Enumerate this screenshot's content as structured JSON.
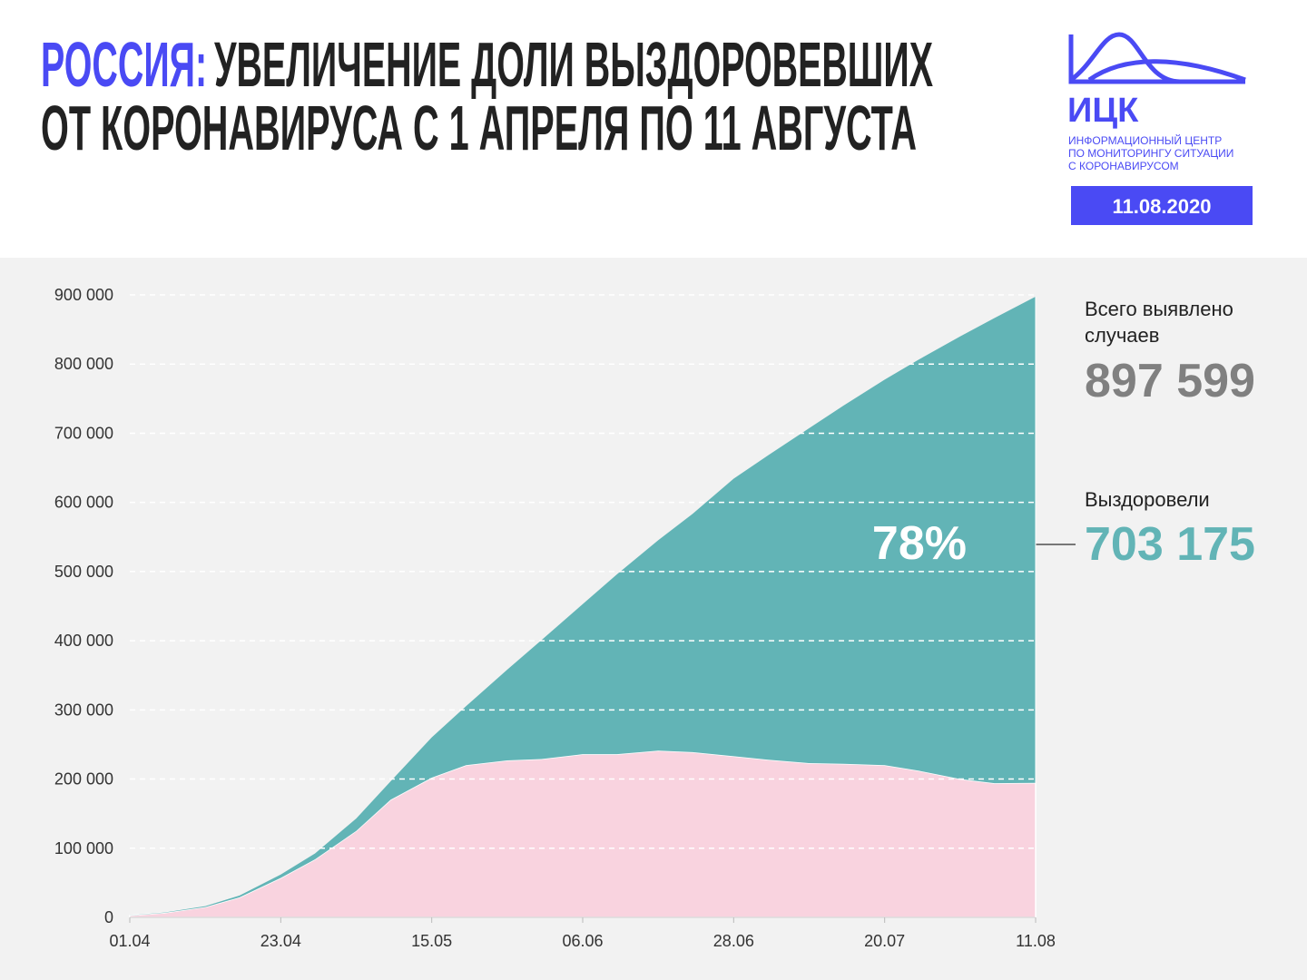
{
  "header": {
    "title_highlight": "РОССИЯ:",
    "title_line1": "УВЕЛИЧЕНИЕ ДОЛИ ВЫЗДОРОВЕВШИХ",
    "title_line2": "ОТ КОРОНАВИРУСА С 1 АПРЕЛЯ ПО 11 АВГУСТА",
    "logo": "ИЦК",
    "logo_lines": [
      "ИНФОРМАЦИОННЫЙ ЦЕНТР",
      "ПО МОНИТОРИНГУ СИТУАЦИИ",
      "С КОРОНАВИРУСОМ"
    ],
    "date": "11.08.2020"
  },
  "chart_data": {
    "type": "stacked_area",
    "x": [
      "01.04",
      "06.04",
      "12.04",
      "17.04",
      "23.04",
      "28.04",
      "04.05",
      "09.05",
      "15.05",
      "20.05",
      "26.05",
      "31.05",
      "06.06",
      "11.06",
      "17.06",
      "22.06",
      "28.06",
      "03.07",
      "09.07",
      "14.07",
      "20.07",
      "25.07",
      "31.07",
      "05.08",
      "11.08"
    ],
    "series": [
      {
        "color": "#f9d3df",
        "values": [
          2800,
          6500,
          15000,
          29000,
          57000,
          84000,
          125000,
          170000,
          202000,
          220000,
          227000,
          229000,
          236000,
          236000,
          241000,
          239000,
          233000,
          228000,
          223000,
          222000,
          220000,
          212000,
          200000,
          194000,
          194424
        ]
      },
      {
        "name": "Выздоровели",
        "color": "#62b4b6",
        "values": [
          200,
          500,
          1300,
          2600,
          5000,
          8500,
          18000,
          26600,
          58200,
          85400,
          131100,
          171900,
          216900,
          260100,
          304300,
          344400,
          401400,
          439900,
          484300,
          517900,
          557500,
          594700,
          640000,
          672600,
          703175
        ]
      }
    ],
    "xlim": [
      "01.04",
      "11.08"
    ],
    "xticks": [
      "01.04",
      "23.04",
      "15.05",
      "06.06",
      "28.06",
      "20.07",
      "11.08"
    ],
    "ylim": [
      0,
      900000
    ],
    "yticks": [
      0,
      {
        "value": 100000,
        "label": "100 000"
      },
      {
        "value": 200000,
        "label": "200 000"
      },
      {
        "value": 300000,
        "label": "300 000"
      },
      {
        "value": 400000,
        "label": "400 000"
      },
      {
        "value": 500000,
        "label": "500 000"
      },
      {
        "value": 600000,
        "label": "600 000"
      },
      {
        "value": 700000,
        "label": "700 000"
      },
      {
        "value": 800000,
        "label": "800 000"
      },
      {
        "value": 900000,
        "label": "900 000"
      }
    ],
    "grid": true,
    "annotations": {
      "total_caption": [
        "Всего выявлено",
        "случаев"
      ],
      "total_value": "897 599",
      "recovered_value": "703 175",
      "share": "78%"
    }
  }
}
